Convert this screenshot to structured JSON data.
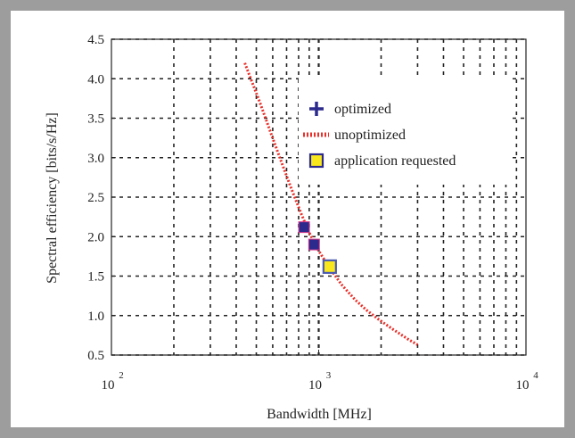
{
  "chart_data": {
    "type": "scatter",
    "title": "",
    "xlabel": "Bandwidth [MHz]",
    "ylabel": "Spectral efficiency [bits/s/Hz]",
    "x_scale": "log",
    "xlim": [
      100,
      10000
    ],
    "ylim": [
      0.5,
      4.5
    ],
    "grid": true,
    "legend_position": "top-right",
    "x_ticks": [
      {
        "value": 100,
        "base": "10",
        "exp": "2"
      },
      {
        "value": 1000,
        "base": "10",
        "exp": "3"
      },
      {
        "value": 10000,
        "base": "10",
        "exp": "4"
      }
    ],
    "y_ticks": [
      "0.5",
      "1.0",
      "1.5",
      "2.0",
      "2.5",
      "3.0",
      "3.5",
      "4.0",
      "4.5"
    ],
    "series": [
      {
        "name": "optimized",
        "kind": "marker-square",
        "color": "#2c2a8c",
        "points": [
          [
            850,
            2.12
          ],
          [
            950,
            1.9
          ]
        ]
      },
      {
        "name": "unoptimized",
        "kind": "dotted-line",
        "color": "#e8302a",
        "points": [
          [
            440,
            4.2
          ],
          [
            470,
            4.0
          ],
          [
            520,
            3.7
          ],
          [
            590,
            3.3
          ],
          [
            660,
            2.95
          ],
          [
            740,
            2.6
          ],
          [
            820,
            2.3
          ],
          [
            900,
            2.05
          ],
          [
            1000,
            1.82
          ],
          [
            1130,
            1.6
          ],
          [
            1300,
            1.38
          ],
          [
            1500,
            1.2
          ],
          [
            1700,
            1.07
          ],
          [
            1950,
            0.95
          ],
          [
            2300,
            0.82
          ],
          [
            2700,
            0.7
          ],
          [
            3000,
            0.63
          ]
        ]
      },
      {
        "name": "application requested",
        "kind": "marker-square",
        "color": "#f7e71c",
        "edge_color": "#4b5bb0",
        "points": [
          [
            1130,
            1.62
          ]
        ]
      }
    ],
    "legend": [
      {
        "label": "optimized",
        "symbol": "plus",
        "color": "#2c2a8c"
      },
      {
        "label": "unoptimized",
        "symbol": "dotted-line",
        "color": "#e8302a"
      },
      {
        "label": "application requested",
        "symbol": "square",
        "color": "#f7e71c",
        "edge_color": "#2c2a8c"
      }
    ]
  }
}
